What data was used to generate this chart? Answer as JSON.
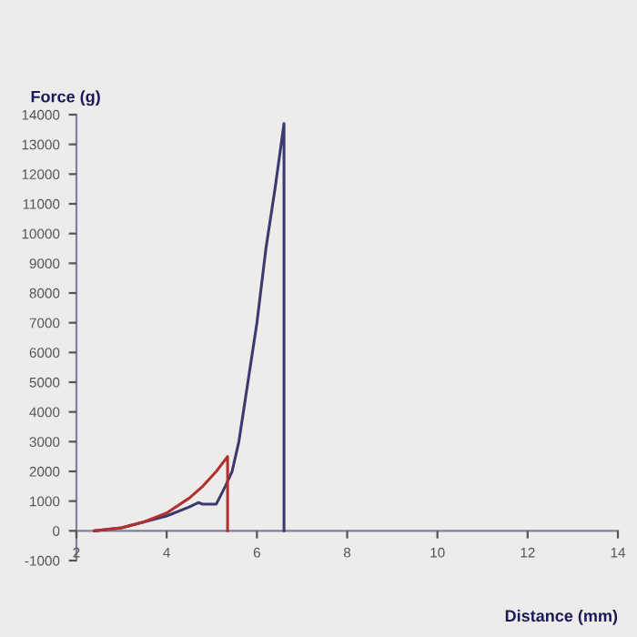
{
  "chart_data": {
    "type": "line",
    "xlabel": "Distance (mm)",
    "ylabel": "Force (g)",
    "xlim": [
      2,
      14
    ],
    "xticks": [
      2,
      4,
      6,
      8,
      10,
      12,
      14
    ],
    "ylim": [
      -1000,
      14000
    ],
    "yticks": [
      -1000,
      0,
      1000,
      2000,
      3000,
      4000,
      5000,
      6000,
      7000,
      8000,
      9000,
      10000,
      11000,
      12000,
      13000,
      14000
    ],
    "grid": false,
    "legend": false,
    "marker": "none",
    "line_style": "solid",
    "series": [
      {
        "color": "#3a3a70",
        "x": [
          2.4,
          3.0,
          3.5,
          4.0,
          4.5,
          4.7,
          4.8,
          5.1,
          5.3,
          5.45,
          5.6,
          5.8,
          6.0,
          6.2,
          6.4,
          6.6,
          6.6
        ],
        "values": [
          0,
          100,
          300,
          500,
          800,
          950,
          900,
          900,
          1500,
          2000,
          3000,
          5000,
          7000,
          9500,
          11500,
          13700,
          0
        ]
      },
      {
        "color": "#b03030",
        "x": [
          2.4,
          3.0,
          3.5,
          4.0,
          4.5,
          4.8,
          5.1,
          5.35,
          5.35
        ],
        "values": [
          0,
          100,
          300,
          600,
          1100,
          1500,
          2000,
          2500,
          0
        ]
      }
    ]
  }
}
